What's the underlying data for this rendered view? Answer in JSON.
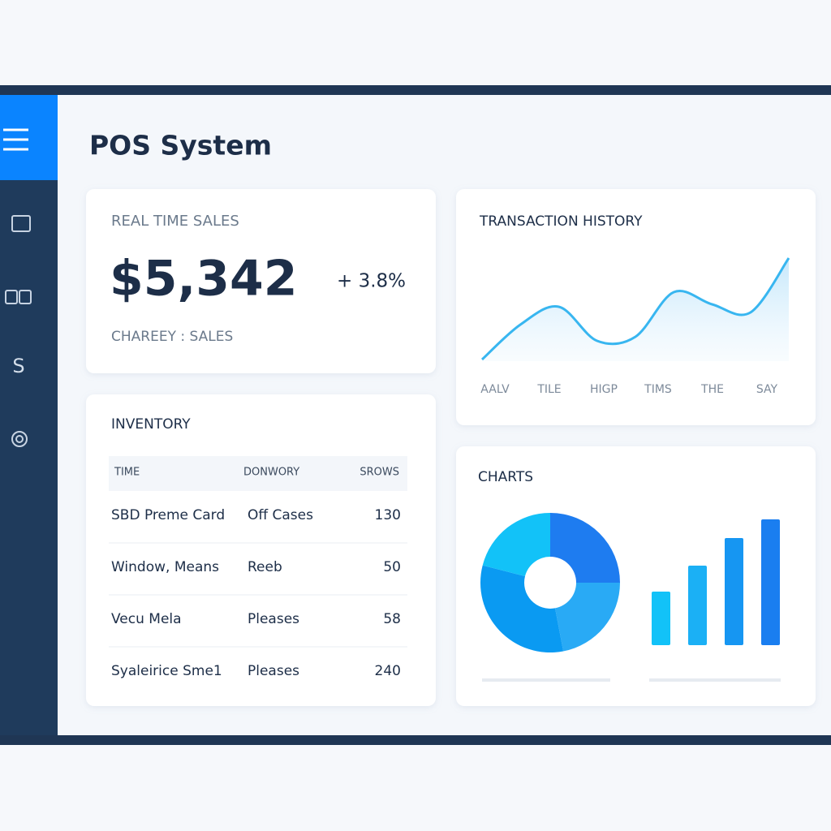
{
  "header": {
    "title": "POS System"
  },
  "sidebar": {
    "label": "S"
  },
  "sales_card": {
    "title": "REAL TIME SALES",
    "amount": "$5,342",
    "change": "+ 3.8%",
    "caption": "CHAREEY : SALES"
  },
  "inventory": {
    "title": "INVENTORY",
    "columns": [
      "TIME",
      "DONWORY",
      "SROWS"
    ],
    "rows": [
      [
        "SBD Preme Card",
        "Off Cases",
        130
      ],
      [
        "Window, Means",
        "Reeb",
        50
      ],
      [
        "Vecu Mela",
        "Pleases",
        58
      ],
      [
        "Syaleirice Sme1",
        "Pleases",
        240
      ]
    ]
  },
  "transaction_history": {
    "title": "TRANSACTION HISTORY",
    "categories": [
      "AALV",
      "TILE",
      "HIGP",
      "TIMS",
      "THE",
      "SAY"
    ],
    "curve": {
      "values": [
        2,
        45,
        67,
        25,
        30,
        85,
        70,
        60,
        127
      ],
      "ylim": [
        0,
        130
      ],
      "color": "#38b6f0"
    }
  },
  "charts": {
    "title": "CHARTS",
    "donut": {
      "values": [
        25,
        22,
        32,
        21
      ],
      "colors": [
        "#1e7cf0",
        "#29aaf5",
        "#0a9af2",
        "#12c2f8"
      ]
    },
    "bars": {
      "values": [
        66,
        98,
        132,
        155
      ],
      "ylim": [
        0,
        160
      ],
      "colors": [
        "#12c2f8",
        "#1bb0f5",
        "#1696f2",
        "#1a7ef0"
      ]
    }
  }
}
